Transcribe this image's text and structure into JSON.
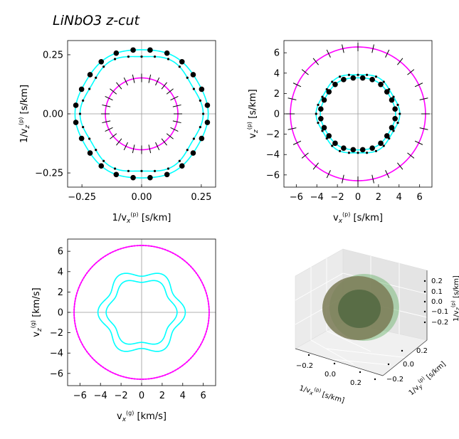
{
  "figure": {
    "title": "LiNbO3 z-cut"
  },
  "chart_data": [
    {
      "id": "slowness",
      "type": "line",
      "xlabel_main": "1/v",
      "xlabel_sub": "x",
      "xlabel_sup": "(p)",
      "xlabel_unit": " [s/km]",
      "ylabel_main": "1/v",
      "ylabel_sub": "z",
      "ylabel_sup": "(p)",
      "ylabel_unit": " [s/km]",
      "xlim": [
        -0.31,
        0.31
      ],
      "ylim": [
        -0.31,
        0.31
      ],
      "xticks": [
        -0.25,
        0.0,
        0.25
      ],
      "xtick_labels": [
        "−0.25",
        "0.00",
        "0.25"
      ],
      "yticks": [
        -0.25,
        0.0,
        0.25
      ],
      "ytick_labels": [
        "−0.25",
        "0.00",
        "0.25"
      ],
      "zero_lines": true,
      "series": [
        {
          "radius": 0.275,
          "amp": 0.004,
          "lobes": 6,
          "color": "#00ffff",
          "markers": "dots",
          "marker_count": 24
        },
        {
          "radius": 0.25,
          "amp": 0.008,
          "lobes": 6,
          "color": "#00ffff",
          "markers": "small-dots",
          "marker_count": 28
        },
        {
          "radius": 0.152,
          "amp": 0.0,
          "lobes": 0,
          "color": "#ff00ff",
          "markers": "ticks",
          "marker_count": 28
        }
      ]
    },
    {
      "id": "phase-velocity",
      "type": "line",
      "xlabel_main": "v",
      "xlabel_sub": "x",
      "xlabel_sup": "(p)",
      "xlabel_unit": " [s/km]",
      "ylabel_main": "v",
      "ylabel_sub": "z",
      "ylabel_sup": "(p)",
      "ylabel_unit": " [s/km]",
      "xlim": [
        -7.2,
        7.2
      ],
      "ylim": [
        -7.2,
        7.2
      ],
      "xticks": [
        -6,
        -4,
        -2,
        0,
        2,
        4,
        6
      ],
      "xtick_labels": [
        "−6",
        "−4",
        "−2",
        "0",
        "2",
        "4",
        "6"
      ],
      "yticks": [
        -6,
        -4,
        -2,
        0,
        2,
        4,
        6
      ],
      "ytick_labels": [
        "−6",
        "−4",
        "−2",
        "0",
        "2",
        "4",
        "6"
      ],
      "zero_lines": true,
      "series": [
        {
          "radius": 6.57,
          "amp": 0.0,
          "lobes": 0,
          "color": "#ff00ff",
          "markers": "ticks",
          "marker_count": 28
        },
        {
          "radius": 3.95,
          "amp": 0.12,
          "lobes": 6,
          "color": "#00ffff",
          "markers": "small-dots",
          "marker_count": 28
        },
        {
          "radius": 3.6,
          "amp": 0.06,
          "lobes": 6,
          "color": "#00ffff",
          "markers": "dots",
          "marker_count": 24
        }
      ]
    },
    {
      "id": "group-velocity",
      "type": "line",
      "xlabel_main": "v",
      "xlabel_sub": "x",
      "xlabel_sup": "(g)",
      "xlabel_unit": " [km/s]",
      "ylabel_main": "v",
      "ylabel_sub": "z",
      "ylabel_sup": "(g)",
      "ylabel_unit": " [km/s]",
      "xlim": [
        -7.2,
        7.2
      ],
      "ylim": [
        -7.2,
        7.2
      ],
      "xticks": [
        -6,
        -4,
        -2,
        0,
        2,
        4,
        6
      ],
      "xtick_labels": [
        "−6",
        "−4",
        "−2",
        "0",
        "2",
        "4",
        "6"
      ],
      "yticks": [
        -6,
        -4,
        -2,
        0,
        2,
        4,
        6
      ],
      "ytick_labels": [
        "−6",
        "−4",
        "−2",
        "0",
        "2",
        "4",
        "6"
      ],
      "zero_lines": true,
      "series": [
        {
          "radius": 6.57,
          "amp": 0.0,
          "lobes": 0,
          "color": "#ff00ff",
          "markers": "magenta-dots",
          "marker_count": 150
        },
        {
          "radius": 3.9,
          "amp": 0.35,
          "lobes": 6,
          "color": "#00ffff",
          "markers": "none",
          "marker_count": 0
        },
        {
          "radius": 3.2,
          "amp": 0.25,
          "lobes": 6,
          "color": "#00ffff",
          "markers": "none",
          "marker_count": 0
        }
      ]
    },
    {
      "id": "slowness-3d",
      "type": "surface3d",
      "xlabel": "1/v",
      "xlabel_sub": "x",
      "xlabel_sup": "(p)",
      "xlabel_unit": " [s/km]",
      "ylabel": "1/v",
      "ylabel_sub": "y",
      "ylabel_sup": "(p)",
      "ylabel_unit": " [s/km]",
      "zlabel": "1/v",
      "zlabel_sub": "z",
      "zlabel_sup": "(p)",
      "zlabel_unit": " [s/km]",
      "xtick_labels": [
        "−0.2",
        "0.0",
        "0.2"
      ],
      "ytick_labels": [
        "0.2",
        "0.0",
        "−0.2"
      ],
      "ztick_labels": [
        "0.2",
        "0.1",
        "0.0",
        "−0.1",
        "−0.2"
      ],
      "surface_colors": [
        "#7a7a55",
        "#4f6640",
        "#66b266"
      ]
    }
  ]
}
